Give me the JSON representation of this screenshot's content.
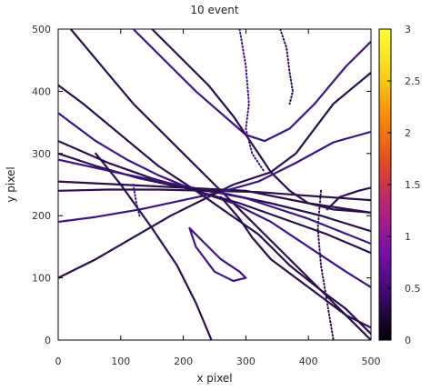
{
  "chart_data": {
    "type": "scatter",
    "title": "10 event",
    "xlabel": "x pixel",
    "ylabel": "y pixel",
    "xlim": [
      0,
      500
    ],
    "ylim": [
      0,
      500
    ],
    "x_ticks": [
      "0",
      "100",
      "200",
      "300",
      "400",
      "500"
    ],
    "y_ticks": [
      "0",
      "100",
      "200",
      "300",
      "400",
      "500"
    ],
    "colorbar": {
      "range": [
        0,
        3
      ],
      "ticks": [
        "0",
        "0.5",
        "1",
        "1.5",
        "2",
        "2.5",
        "3"
      ],
      "palette": [
        "#000000",
        "#3b0a6b",
        "#7a10a8",
        "#b4237a",
        "#e24a24",
        "#f58a0a",
        "#f9d21c",
        "#ffff3c"
      ]
    },
    "colors": {
      "track": "#2a0f4a",
      "track_accent": "#3c1580"
    },
    "tracks": [
      {
        "points": [
          [
            20,
            500
          ],
          [
            120,
            380
          ],
          [
            200,
            300
          ],
          [
            250,
            250
          ],
          [
            300,
            200
          ],
          [
            350,
            150
          ],
          [
            400,
            100
          ],
          [
            440,
            60
          ],
          [
            480,
            20
          ],
          [
            500,
            0
          ]
        ]
      },
      {
        "points": [
          [
            120,
            500
          ],
          [
            160,
            460
          ],
          [
            220,
            400
          ],
          [
            300,
            330
          ],
          [
            330,
            320
          ],
          [
            370,
            340
          ],
          [
            410,
            380
          ],
          [
            460,
            440
          ],
          [
            500,
            480
          ]
        ]
      },
      {
        "points": [
          [
            150,
            500
          ],
          [
            190,
            460
          ],
          [
            240,
            410
          ],
          [
            280,
            360
          ],
          [
            300,
            330
          ],
          [
            320,
            300
          ],
          [
            340,
            270
          ],
          [
            370,
            240
          ],
          [
            400,
            220
          ],
          [
            440,
            210
          ],
          [
            500,
            205
          ]
        ]
      },
      {
        "points": [
          [
            0,
            410
          ],
          [
            40,
            380
          ],
          [
            100,
            330
          ],
          [
            160,
            280
          ],
          [
            220,
            240
          ],
          [
            270,
            205
          ],
          [
            320,
            170
          ],
          [
            370,
            120
          ],
          [
            420,
            80
          ],
          [
            460,
            50
          ],
          [
            500,
            10
          ]
        ]
      },
      {
        "points": [
          [
            0,
            365
          ],
          [
            60,
            320
          ],
          [
            110,
            290
          ],
          [
            160,
            265
          ],
          [
            220,
            240
          ],
          [
            280,
            220
          ],
          [
            340,
            190
          ],
          [
            400,
            150
          ],
          [
            460,
            110
          ],
          [
            500,
            85
          ]
        ]
      },
      {
        "points": [
          [
            0,
            320
          ],
          [
            80,
            285
          ],
          [
            150,
            260
          ],
          [
            220,
            240
          ],
          [
            290,
            220
          ],
          [
            360,
            195
          ],
          [
            430,
            170
          ],
          [
            500,
            140
          ]
        ]
      },
      {
        "points": [
          [
            0,
            300
          ],
          [
            60,
            280
          ],
          [
            130,
            260
          ],
          [
            200,
            245
          ],
          [
            270,
            235
          ],
          [
            340,
            220
          ],
          [
            420,
            200
          ],
          [
            500,
            175
          ]
        ]
      },
      {
        "points": [
          [
            0,
            290
          ],
          [
            100,
            268
          ],
          [
            200,
            248
          ],
          [
            300,
            228
          ],
          [
            400,
            195
          ],
          [
            500,
            155
          ]
        ]
      },
      {
        "points": [
          [
            0,
            255
          ],
          [
            100,
            250
          ],
          [
            200,
            245
          ],
          [
            300,
            240
          ],
          [
            400,
            220
          ],
          [
            500,
            205
          ]
        ]
      },
      {
        "points": [
          [
            0,
            240
          ],
          [
            80,
            242
          ],
          [
            160,
            242
          ],
          [
            240,
            240
          ],
          [
            320,
            238
          ],
          [
            400,
            232
          ],
          [
            500,
            225
          ]
        ]
      },
      {
        "points": [
          [
            0,
            190
          ],
          [
            60,
            198
          ],
          [
            130,
            210
          ],
          [
            200,
            225
          ],
          [
            260,
            238
          ],
          [
            320,
            255
          ],
          [
            380,
            285
          ],
          [
            440,
            318
          ],
          [
            500,
            335
          ]
        ]
      },
      {
        "points": [
          [
            0,
            100
          ],
          [
            60,
            130
          ],
          [
            120,
            165
          ],
          [
            180,
            200
          ],
          [
            230,
            225
          ],
          [
            280,
            250
          ],
          [
            340,
            270
          ],
          [
            380,
            300
          ],
          [
            440,
            380
          ],
          [
            500,
            430
          ]
        ]
      },
      {
        "points": [
          [
            60,
            300
          ],
          [
            100,
            250
          ],
          [
            150,
            180
          ],
          [
            190,
            120
          ],
          [
            220,
            60
          ],
          [
            245,
            0
          ]
        ]
      },
      {
        "points": [
          [
            210,
            180
          ],
          [
            230,
            160
          ],
          [
            260,
            130
          ],
          [
            290,
            110
          ],
          [
            300,
            100
          ],
          [
            280,
            95
          ],
          [
            250,
            110
          ],
          [
            220,
            150
          ],
          [
            210,
            180
          ]
        ]
      },
      {
        "points": [
          [
            260,
            230
          ],
          [
            290,
            195
          ],
          [
            310,
            165
          ],
          [
            340,
            130
          ],
          [
            380,
            100
          ],
          [
            420,
            70
          ],
          [
            460,
            40
          ],
          [
            500,
            20
          ]
        ]
      },
      {
        "points": [
          [
            430,
            210
          ],
          [
            450,
            230
          ],
          [
            480,
            240
          ],
          [
            500,
            245
          ]
        ]
      },
      {
        "points": [
          [
            290,
            500
          ],
          [
            300,
            440
          ],
          [
            305,
            380
          ],
          [
            300,
            340
          ],
          [
            310,
            300
          ],
          [
            330,
            270
          ]
        ],
        "dotted": true
      },
      {
        "points": [
          [
            355,
            500
          ],
          [
            365,
            470
          ],
          [
            370,
            430
          ],
          [
            375,
            400
          ],
          [
            370,
            380
          ]
        ],
        "dotted": true
      },
      {
        "points": [
          [
            420,
            240
          ],
          [
            415,
            180
          ],
          [
            420,
            120
          ],
          [
            430,
            60
          ],
          [
            440,
            0
          ]
        ],
        "dotted": true
      },
      {
        "points": [
          [
            120,
            250
          ],
          [
            125,
            220
          ],
          [
            130,
            200
          ]
        ],
        "dotted": true
      }
    ]
  }
}
